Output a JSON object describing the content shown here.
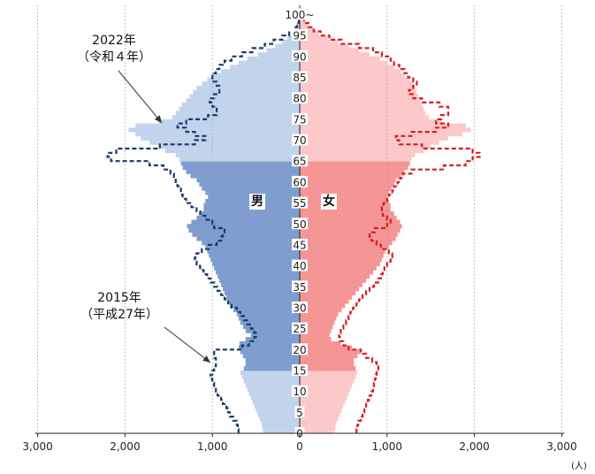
{
  "chart_data": {
    "type": "area",
    "subtype": "population-pyramid",
    "x_unit": "(人)",
    "x_ticks": [
      "3,000",
      "2,000",
      "1,000",
      "0",
      "1,000",
      "2,000",
      "3,000"
    ],
    "x_range": [
      -3000,
      3000
    ],
    "y_ticks": [
      "0",
      "5",
      "10",
      "15",
      "20",
      "25",
      "30",
      "35",
      "40",
      "45",
      "50",
      "55",
      "60",
      "65",
      "70",
      "75",
      "80",
      "85",
      "90",
      "95",
      "100~"
    ],
    "y_range": [
      0,
      100
    ],
    "labels": {
      "male": "男",
      "female": "女"
    },
    "series": [
      {
        "name": "2022年 (令和４年)",
        "style": "bars",
        "male": [
          420,
          430,
          440,
          460,
          480,
          500,
          520,
          540,
          560,
          580,
          600,
          620,
          640,
          660,
          680,
          640,
          620,
          620,
          650,
          680,
          700,
          690,
          620,
          560,
          620,
          650,
          680,
          700,
          720,
          760,
          800,
          820,
          840,
          860,
          880,
          900,
          920,
          940,
          960,
          980,
          1000,
          1020,
          1040,
          1060,
          1080,
          1120,
          1180,
          1230,
          1270,
          1290,
          1240,
          1180,
          1130,
          1100,
          1100,
          1080,
          1050,
          1080,
          1120,
          1150,
          1180,
          1250,
          1300,
          1340,
          1360,
          1380,
          1420,
          1540,
          1620,
          1720,
          1820,
          1880,
          1960,
          1880,
          1620,
          1460,
          1420,
          1380,
          1350,
          1300,
          1260,
          1220,
          1180,
          1120,
          1060,
          1000,
          900,
          800,
          700,
          600,
          480,
          380,
          280,
          200,
          140,
          90,
          60,
          40,
          25,
          15,
          20
        ],
        "female": [
          400,
          410,
          420,
          440,
          460,
          480,
          500,
          520,
          540,
          560,
          580,
          600,
          620,
          640,
          660,
          640,
          620,
          620,
          660,
          700,
          600,
          470,
          360,
          340,
          360,
          380,
          400,
          420,
          440,
          480,
          520,
          560,
          600,
          640,
          680,
          720,
          760,
          800,
          840,
          880,
          920,
          940,
          960,
          980,
          1020,
          1060,
          1100,
          1120,
          1150,
          1170,
          1150,
          1110,
          1080,
          1040,
          1040,
          1020,
          1000,
          1020,
          1050,
          1080,
          1100,
          1160,
          1200,
          1240,
          1260,
          1280,
          1320,
          1420,
          1500,
          1600,
          1700,
          1860,
          1960,
          1900,
          1620,
          1480,
          1440,
          1420,
          1400,
          1380,
          1360,
          1340,
          1320,
          1300,
          1260,
          1200,
          1150,
          1080,
          1000,
          920,
          800,
          680,
          560,
          440,
          320,
          220,
          150,
          100,
          60,
          40,
          60
        ]
      },
      {
        "name": "2015年 (平成27年)",
        "style": "dashed-line",
        "male": [
          700,
          710,
          720,
          760,
          800,
          820,
          840,
          880,
          900,
          940,
          960,
          980,
          1000,
          1020,
          1000,
          980,
          960,
          960,
          980,
          980,
          660,
          580,
          520,
          500,
          520,
          560,
          600,
          640,
          680,
          720,
          780,
          820,
          860,
          900,
          940,
          980,
          1020,
          1060,
          1100,
          1140,
          1180,
          1200,
          1180,
          1120,
          1040,
          950,
          900,
          880,
          860,
          980,
          1000,
          1080,
          1140,
          1180,
          1240,
          1300,
          1340,
          1360,
          1360,
          1400,
          1420,
          1440,
          1480,
          1560,
          1720,
          2160,
          2200,
          2100,
          1600,
          1200,
          1080,
          1200,
          1300,
          1400,
          1300,
          1050,
          950,
          950,
          1000,
          1030,
          980,
          920,
          920,
          950,
          1000,
          1000,
          960,
          920,
          860,
          780,
          660,
          540,
          400,
          300,
          200,
          120,
          60,
          30,
          10,
          8,
          5
        ],
        "female": [
          650,
          660,
          670,
          700,
          720,
          740,
          760,
          780,
          800,
          820,
          840,
          850,
          860,
          870,
          880,
          900,
          880,
          830,
          760,
          700,
          560,
          500,
          460,
          450,
          470,
          500,
          530,
          560,
          580,
          610,
          650,
          680,
          720,
          760,
          800,
          850,
          900,
          930,
          950,
          970,
          1000,
          1040,
          1060,
          1020,
          930,
          880,
          820,
          800,
          860,
          1000,
          1040,
          1000,
          950,
          940,
          960,
          1000,
          1020,
          1060,
          1080,
          1120,
          1150,
          1180,
          1280,
          1650,
          1900,
          1980,
          2060,
          1980,
          1400,
          1140,
          1100,
          1280,
          1560,
          1700,
          1560,
          1620,
          1700,
          1700,
          1600,
          1400,
          1300,
          1250,
          1300,
          1340,
          1300,
          1240,
          1200,
          1140,
          1080,
          1040,
          940,
          840,
          680,
          480,
          340,
          240,
          160,
          100,
          50,
          30,
          20
        ]
      }
    ]
  },
  "annotations": {
    "a2022": {
      "line1": "2022年",
      "line2": "（令和４年）"
    },
    "a2015": {
      "line1": "2015年",
      "line2": "（平成27年）"
    }
  },
  "colors": {
    "male_young": "#c2d4ec",
    "male_working": "#7f9ecf",
    "male_old": "#c2d4ec",
    "female_young": "#fbc9c9",
    "female_working": "#f59595",
    "female_old": "#fbc9c9",
    "male_line": "#1b3a6b",
    "female_line": "#d42020"
  }
}
